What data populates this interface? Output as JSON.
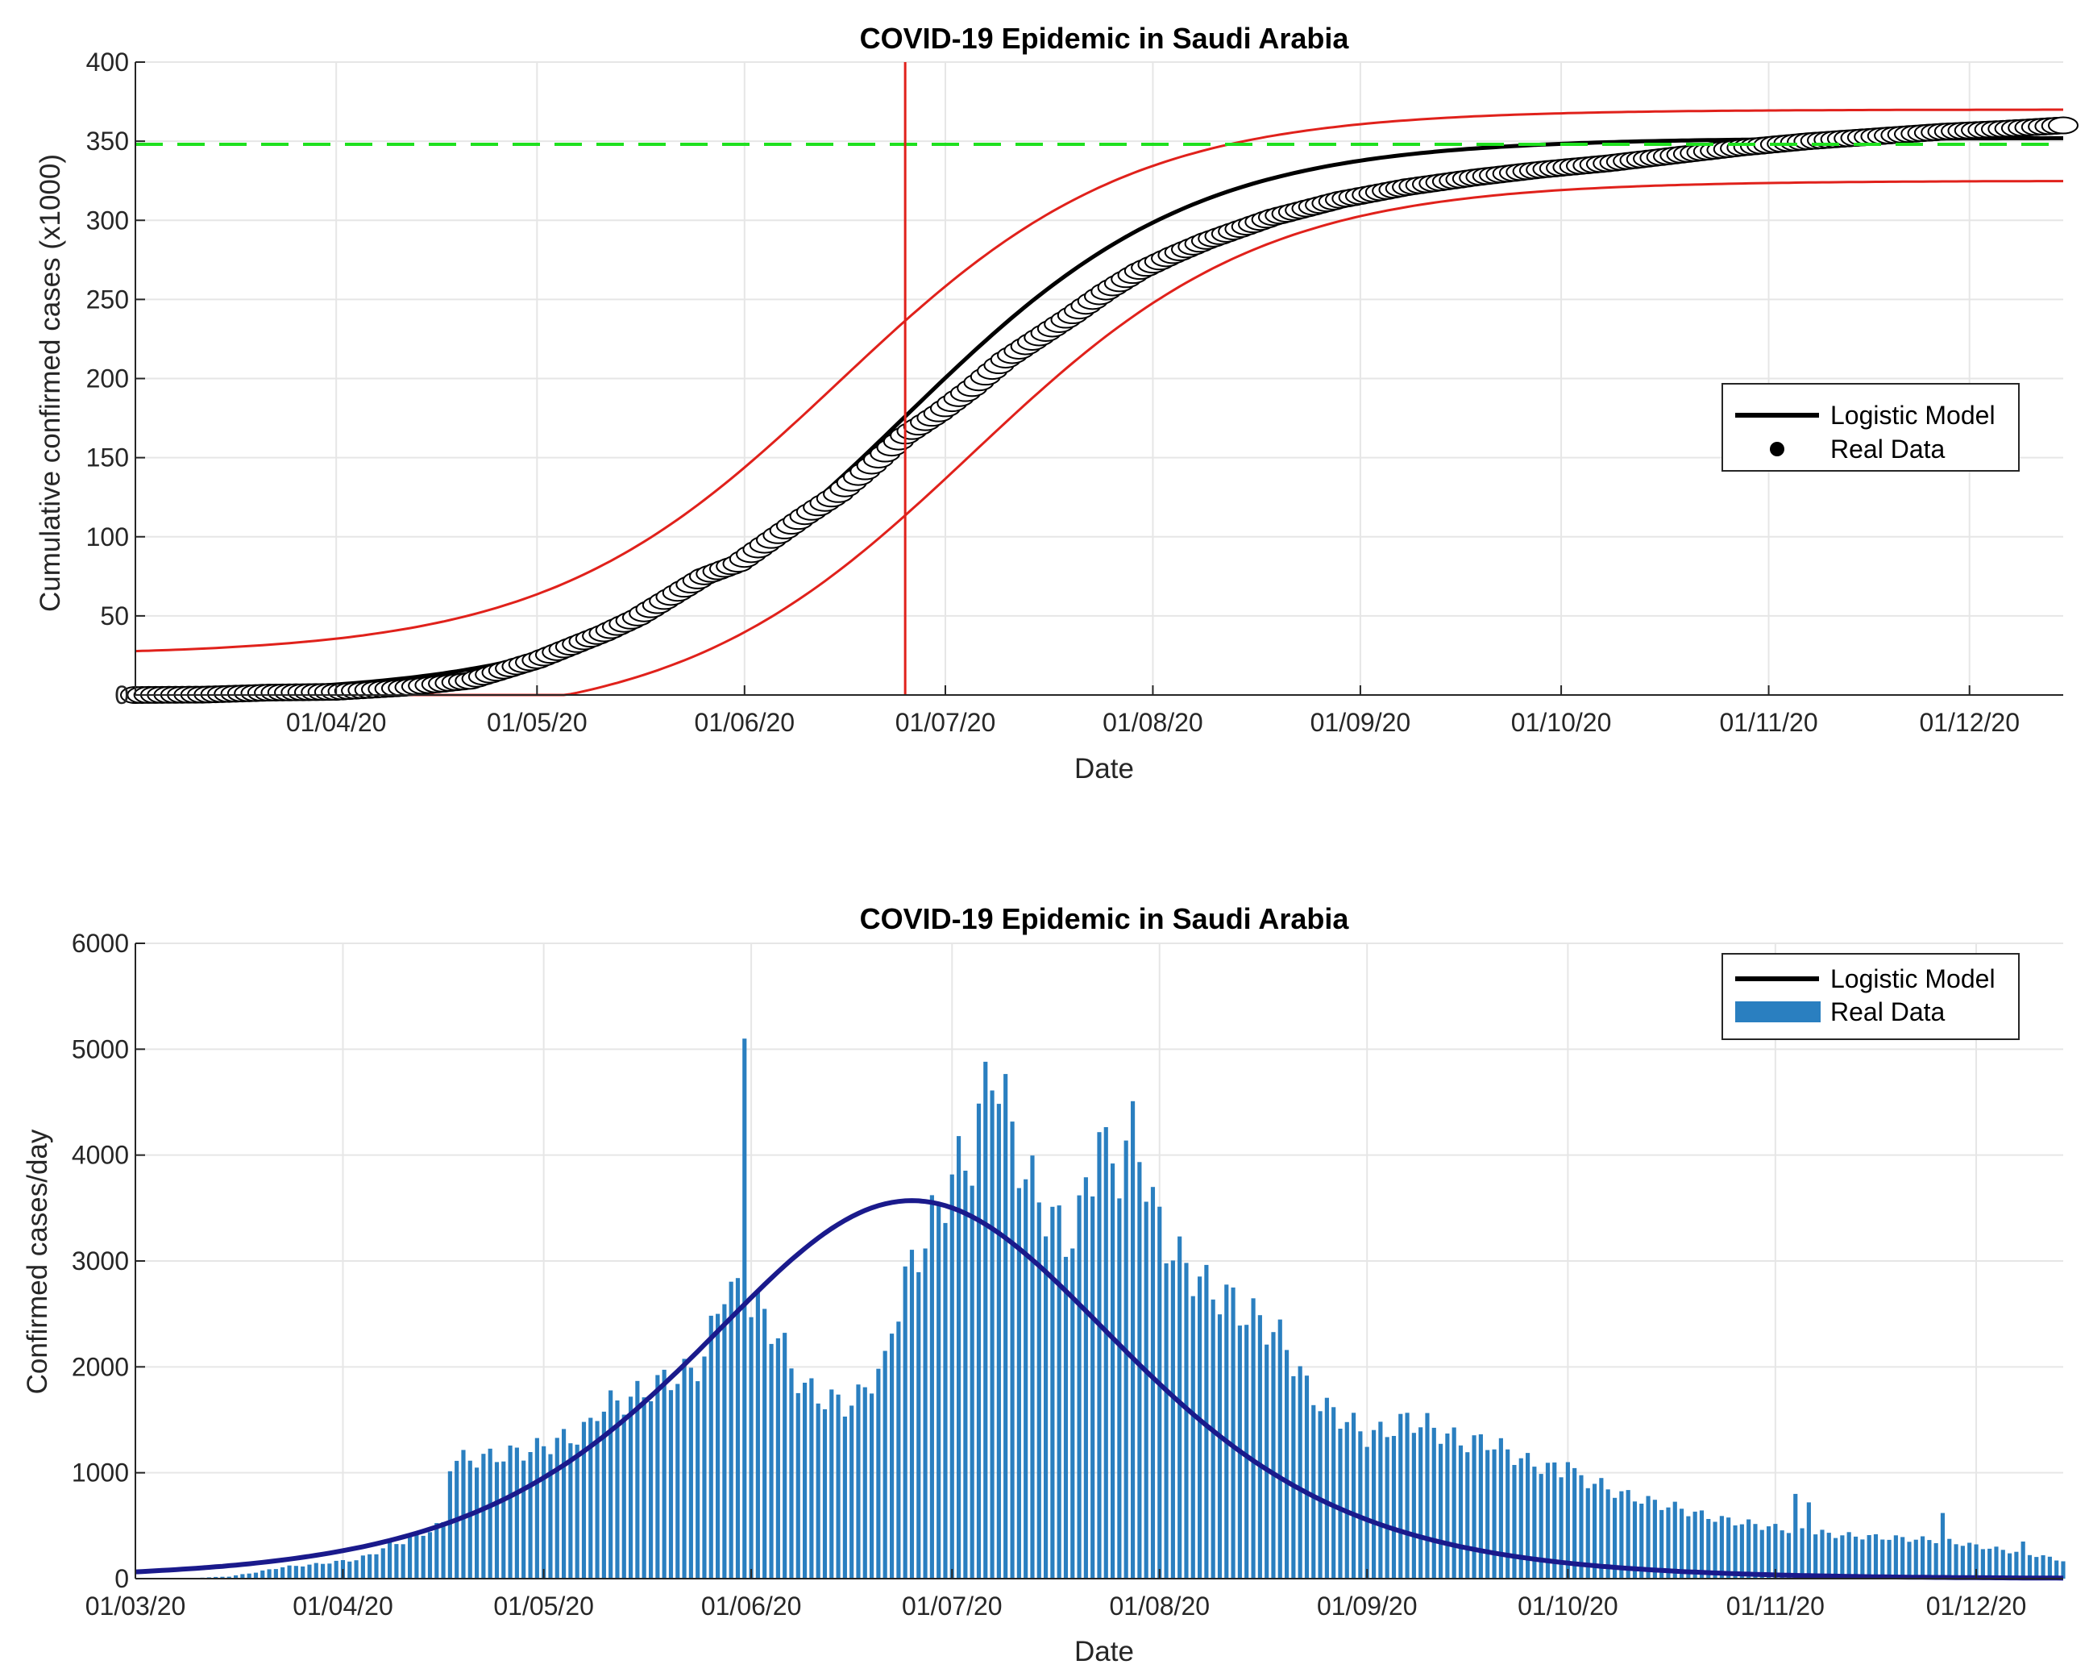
{
  "colors": {
    "model": "#000000",
    "model_bottom": "#1a1a8c",
    "bounds": "#e0211b",
    "capacity": "#1fe01f",
    "bars": "#2a7fc0",
    "grid": "#e6e6e6",
    "axis": "#262626"
  },
  "chart_data": [
    {
      "type": "line",
      "title": "COVID-19 Epidemic in Saudi Arabia",
      "xlabel": "Date",
      "ylabel": "Cumulative confirmed cases (x1000)",
      "x_tick_labels": [
        "01/04/20",
        "01/05/20",
        "01/06/20",
        "01/07/20",
        "01/08/20",
        "01/09/20",
        "01/10/20",
        "01/11/20",
        "01/12/20"
      ],
      "x_tick_days": [
        30,
        60,
        91,
        121,
        152,
        183,
        213,
        244,
        274
      ],
      "xlim_days": [
        0,
        288
      ],
      "x_origin_date": "01/03/20",
      "yticks": [
        0,
        50,
        100,
        150,
        200,
        250,
        300,
        350,
        400
      ],
      "ylim": [
        0,
        400
      ],
      "grid": true,
      "legend": {
        "position": "right",
        "entries": [
          "Logistic Model",
          "Real Data"
        ]
      },
      "series": [
        {
          "name": "Logistic Model",
          "kind": "logistic",
          "K": 352,
          "r": 0.0465,
          "t0": 115,
          "color": "model"
        },
        {
          "name": "Upper bound",
          "kind": "logistic",
          "K": 345,
          "r": 0.046,
          "t0": 105,
          "offset": 25,
          "color": "bounds"
        },
        {
          "name": "Lower bound",
          "kind": "logistic",
          "K": 345,
          "r": 0.046,
          "t0": 125,
          "offset": -20,
          "color": "bounds"
        },
        {
          "name": "Real Data",
          "kind": "markers",
          "color": "model",
          "points": [
            [
              0,
              0
            ],
            [
              10,
              0.2
            ],
            [
              20,
              1.5
            ],
            [
              30,
              2
            ],
            [
              40,
              4.5
            ],
            [
              50,
              9
            ],
            [
              60,
              22
            ],
            [
              70,
              39
            ],
            [
              75,
              49
            ],
            [
              80,
              62
            ],
            [
              85,
              75
            ],
            [
              90,
              83
            ],
            [
              95,
              98
            ],
            [
              100,
              113
            ],
            [
              105,
              127
            ],
            [
              110,
              145
            ],
            [
              115,
              164
            ],
            [
              120,
              178
            ],
            [
              125,
              194
            ],
            [
              130,
              212
            ],
            [
              135,
              226
            ],
            [
              140,
              240
            ],
            [
              145,
              255
            ],
            [
              150,
              268
            ],
            [
              155,
              278
            ],
            [
              160,
              287
            ],
            [
              170,
              302
            ],
            [
              180,
              313
            ],
            [
              190,
              321
            ],
            [
              200,
              327
            ],
            [
              210,
              332
            ],
            [
              220,
              336
            ],
            [
              230,
              341
            ],
            [
              240,
              346
            ],
            [
              250,
              350
            ],
            [
              260,
              353
            ],
            [
              270,
              356
            ],
            [
              280,
              358
            ],
            [
              288,
              360
            ]
          ]
        },
        {
          "name": "Carrying capacity",
          "kind": "hline",
          "y": 348,
          "color": "capacity"
        },
        {
          "name": "Peak day",
          "kind": "vline",
          "x": 115,
          "color": "bounds"
        }
      ]
    },
    {
      "type": "bar",
      "title": "COVID-19 Epidemic in Saudi Arabia",
      "xlabel": "Date",
      "ylabel": "Confirmed cases/day",
      "x_tick_labels": [
        "01/03/20",
        "01/04/20",
        "01/05/20",
        "01/06/20",
        "01/07/20",
        "01/08/20",
        "01/09/20",
        "01/10/20",
        "01/11/20",
        "01/12/20"
      ],
      "x_tick_days": [
        0,
        31,
        61,
        92,
        122,
        153,
        184,
        214,
        245,
        275
      ],
      "xlim_days": [
        0,
        288
      ],
      "yticks": [
        0,
        1000,
        2000,
        3000,
        4000,
        5000,
        6000
      ],
      "ylim": [
        0,
        6000
      ],
      "grid": true,
      "legend": {
        "position": "top-right",
        "entries": [
          "Logistic Model",
          "Real Data"
        ]
      },
      "model_curve": {
        "name": "Logistic Model",
        "peak": 3570,
        "r": 0.0465,
        "t0": 116,
        "color": "model_bottom"
      },
      "bar_anchors": [
        [
          8,
          5
        ],
        [
          14,
          20
        ],
        [
          18,
          60
        ],
        [
          22,
          110
        ],
        [
          26,
          130
        ],
        [
          30,
          160
        ],
        [
          33,
          180
        ],
        [
          36,
          250
        ],
        [
          38,
          320
        ],
        [
          40,
          350
        ],
        [
          43,
          430
        ],
        [
          46,
          520
        ],
        [
          47,
          1100
        ],
        [
          48,
          1120
        ],
        [
          52,
          1140
        ],
        [
          56,
          1180
        ],
        [
          60,
          1230
        ],
        [
          63,
          1300
        ],
        [
          66,
          1350
        ],
        [
          68,
          1450
        ],
        [
          69,
          1600
        ],
        [
          71,
          1650
        ],
        [
          74,
          1700
        ],
        [
          77,
          1800
        ],
        [
          80,
          1900
        ],
        [
          83,
          1950
        ],
        [
          85,
          2100
        ],
        [
          86,
          2300
        ],
        [
          88,
          2800
        ],
        [
          89,
          2700
        ],
        [
          92,
          2600
        ],
        [
          95,
          2400
        ],
        [
          96,
          2300
        ],
        [
          98,
          2000
        ],
        [
          100,
          1800
        ],
        [
          103,
          1700
        ],
        [
          106,
          1650
        ],
        [
          108,
          1700
        ],
        [
          110,
          1900
        ],
        [
          112,
          2000
        ],
        [
          113,
          2400
        ],
        [
          115,
          2800
        ],
        [
          117,
          3100
        ],
        [
          120,
          3500
        ],
        [
          122,
          3800
        ],
        [
          124,
          3950
        ],
        [
          125,
          4000
        ],
        [
          127,
          4600
        ],
        [
          128,
          4900
        ],
        [
          129,
          4700
        ],
        [
          131,
          4200
        ],
        [
          133,
          3800
        ],
        [
          135,
          3600
        ],
        [
          137,
          3400
        ],
        [
          139,
          3200
        ],
        [
          141,
          3400
        ],
        [
          143,
          3900
        ],
        [
          144,
          4300
        ],
        [
          145,
          3950
        ],
        [
          147,
          3900
        ],
        [
          149,
          4200
        ],
        [
          150,
          4100
        ],
        [
          152,
          3500
        ],
        [
          154,
          3200
        ],
        [
          156,
          3000
        ],
        [
          158,
          2900
        ],
        [
          160,
          2750
        ],
        [
          163,
          2650
        ],
        [
          166,
          2500
        ],
        [
          169,
          2400
        ],
        [
          172,
          2200
        ],
        [
          175,
          1800
        ],
        [
          178,
          1600
        ],
        [
          181,
          1500
        ],
        [
          184,
          1350
        ],
        [
          187,
          1400
        ],
        [
          190,
          1500
        ],
        [
          193,
          1450
        ],
        [
          196,
          1350
        ],
        [
          199,
          1280
        ],
        [
          202,
          1300
        ],
        [
          205,
          1200
        ],
        [
          208,
          1100
        ],
        [
          211,
          1050
        ],
        [
          214,
          1000
        ],
        [
          216,
          950
        ],
        [
          219,
          880
        ],
        [
          222,
          800
        ],
        [
          225,
          750
        ],
        [
          228,
          700
        ],
        [
          231,
          660
        ],
        [
          234,
          600
        ],
        [
          237,
          560
        ],
        [
          240,
          530
        ],
        [
          243,
          500
        ],
        [
          246,
          470
        ],
        [
          249,
          450
        ],
        [
          252,
          430
        ],
        [
          255,
          410
        ],
        [
          258,
          400
        ],
        [
          261,
          390
        ],
        [
          264,
          380
        ],
        [
          267,
          370
        ],
        [
          270,
          360
        ],
        [
          273,
          330
        ],
        [
          276,
          300
        ],
        [
          279,
          270
        ],
        [
          282,
          240
        ],
        [
          285,
          210
        ],
        [
          288,
          170
        ]
      ],
      "bar_spikes": [
        [
          91,
          5100
        ],
        [
          214,
          1100
        ],
        [
          248,
          800
        ],
        [
          250,
          720
        ],
        [
          270,
          620
        ],
        [
          282,
          350
        ]
      ]
    }
  ]
}
